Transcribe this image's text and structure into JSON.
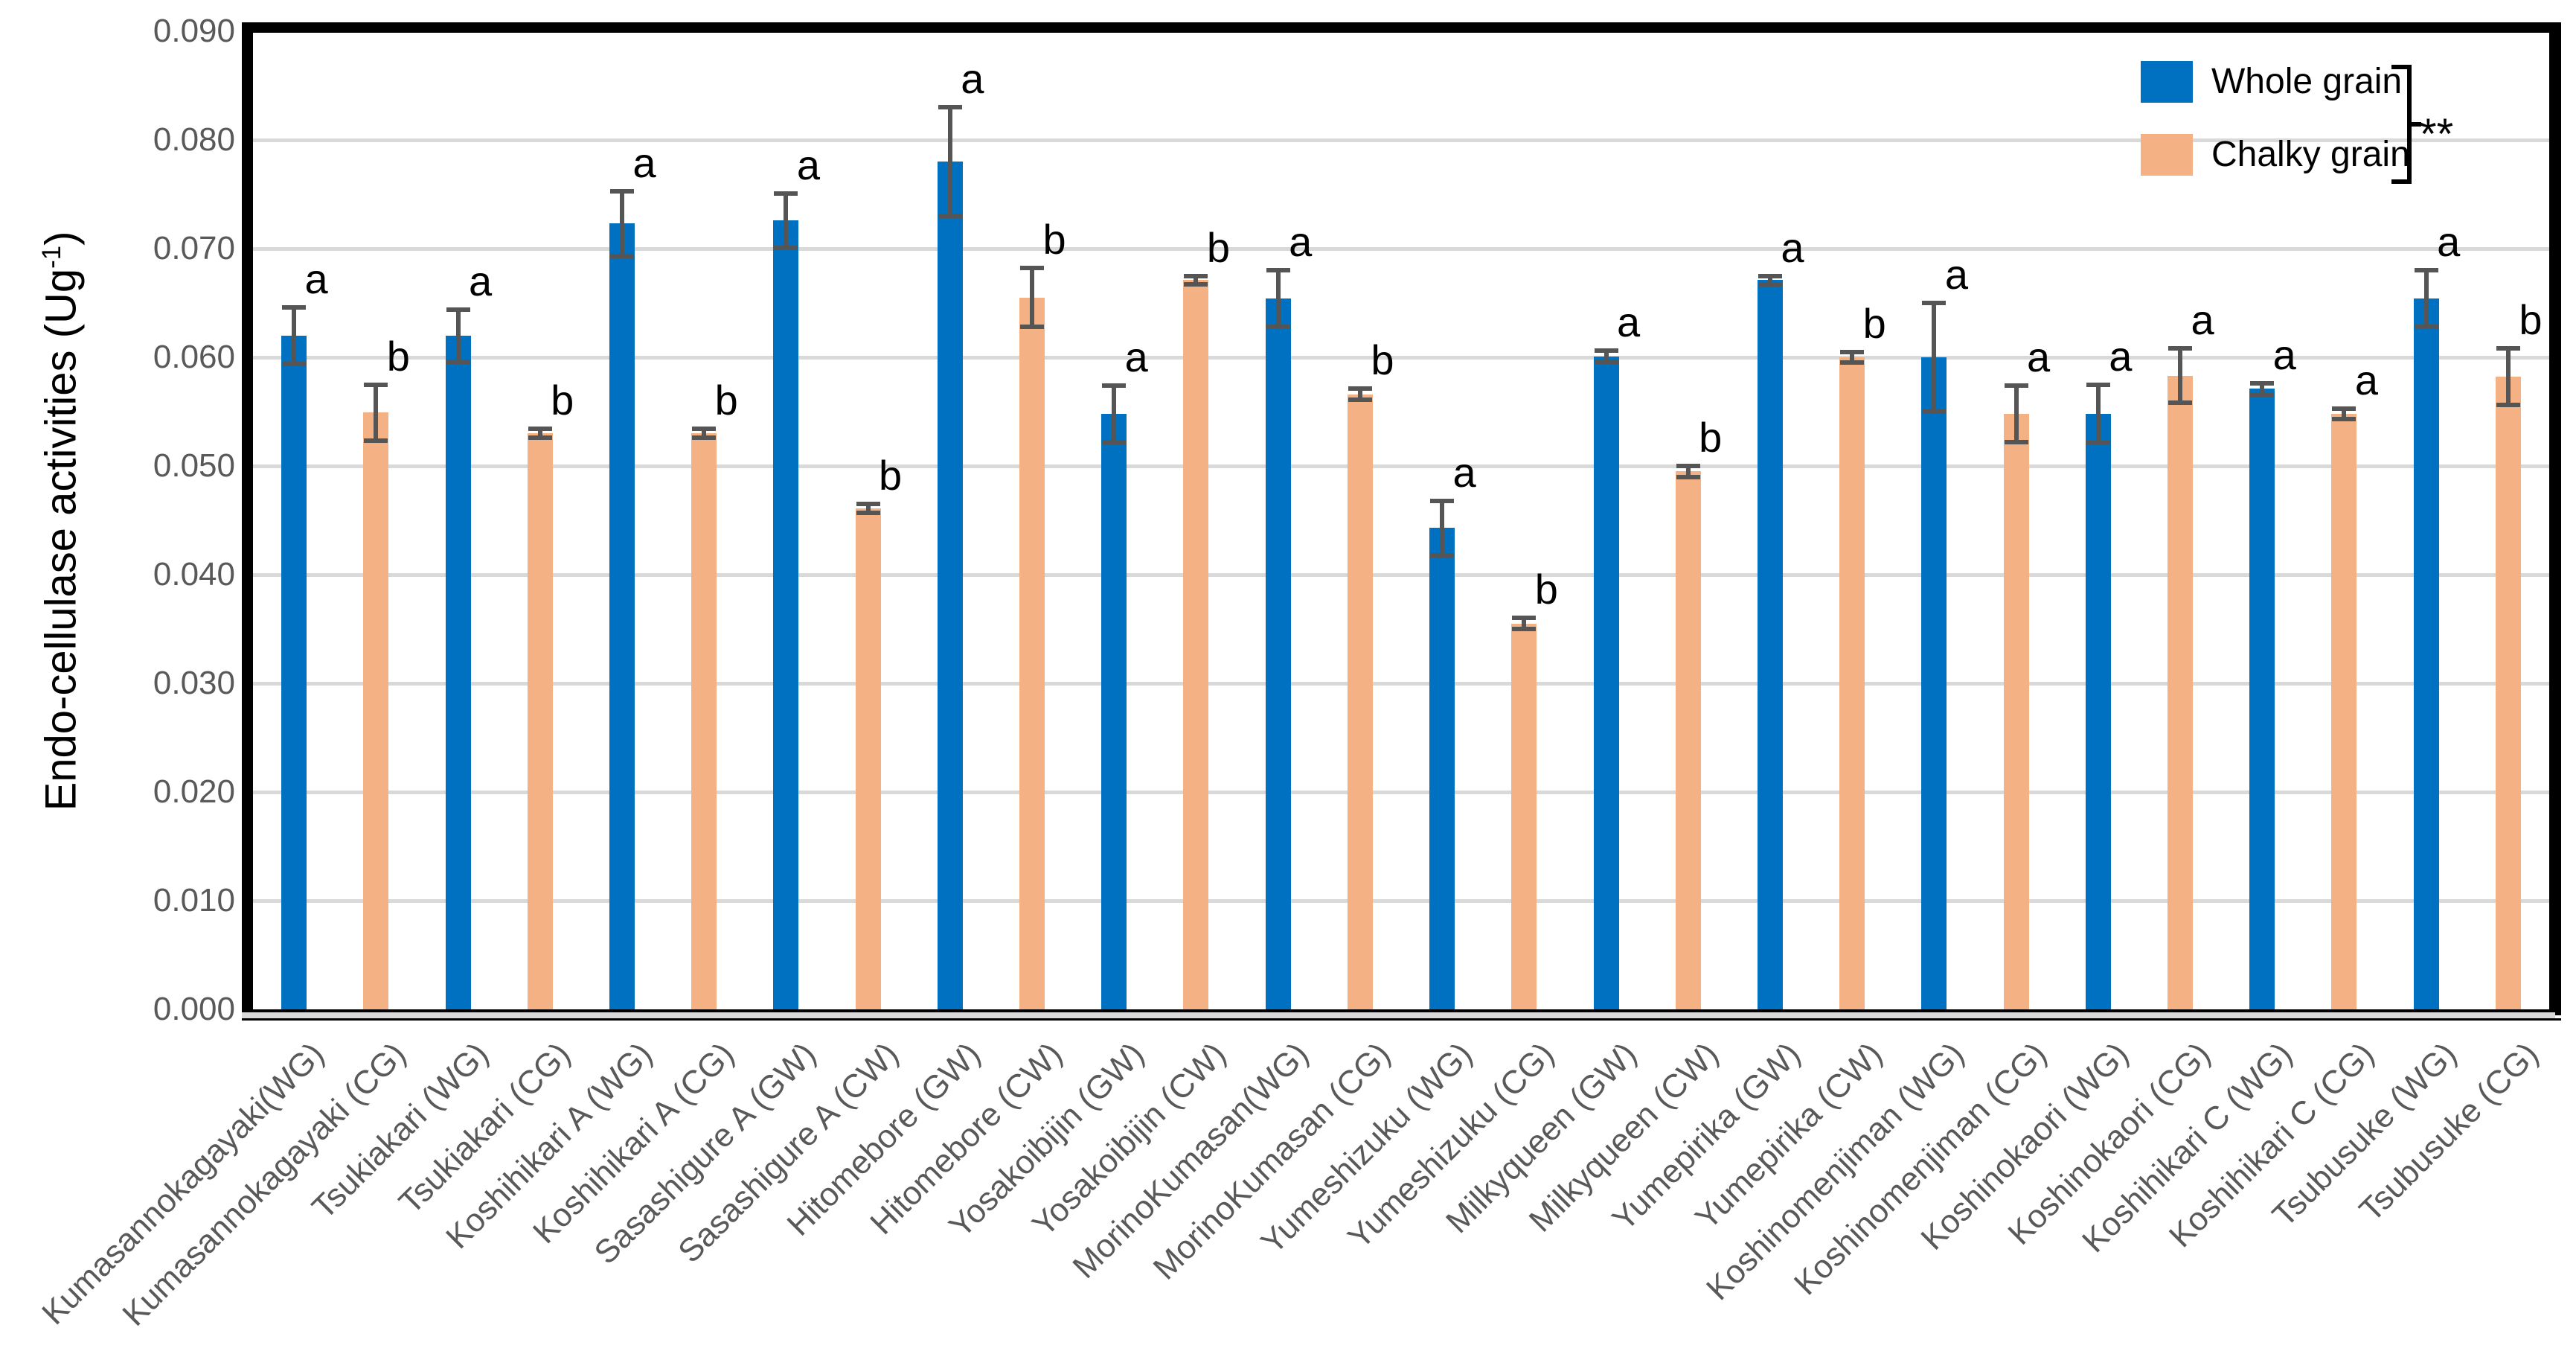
{
  "colors": {
    "whole_grain": "#0070C0",
    "chalky_grain": "#F4B183",
    "gridline": "#D9D9D9",
    "error_bar": "#555555",
    "tick_text": "#595959",
    "axis_line": "#000000"
  },
  "y_axis": {
    "title_text": "Endo-cellulase activities (Ug",
    "title_sup": "-1",
    "title_suffix": ")",
    "ticks": [
      "0.000",
      "0.010",
      "0.020",
      "0.030",
      "0.040",
      "0.050",
      "0.060",
      "0.070",
      "0.080",
      "0.090"
    ]
  },
  "legend": {
    "items": [
      {
        "label": "Whole grain",
        "color_key": "whole_grain"
      },
      {
        "label": "Chalky grain",
        "color_key": "chalky_grain"
      }
    ],
    "significance": "**"
  },
  "chart_data": {
    "type": "bar",
    "title": "",
    "xlabel": "",
    "ylabel": "Endo-cellulase activities (Ug-1)",
    "ylim": [
      0,
      0.09
    ],
    "ytick_step": 0.01,
    "grid": true,
    "legend_position": "top-right",
    "categories": [
      "Kumasannokagayaki(WG)",
      "Kumasannokagayaki (CG)",
      "Tsukiakari (WG)",
      "Tsukiakari (CG)",
      "Koshihikari A (WG)",
      "Koshihikari A (CG)",
      "Sasashigure A (GW)",
      "Sasashigure A (CW)",
      "Hitomebore (GW)",
      "Hitomebore (CW)",
      "Yosakoibijin (GW)",
      "Yosakoibijin (CW)",
      "MorinoKumasan(WG)",
      "MorinoKumasan (CG)",
      "Yumeshizuku (WG)",
      "Yumeshizuku (CG)",
      "Milkyqueen (GW)",
      "Milkyqueen (CW)",
      "Yumepirika (GW)",
      "Yumepirika (CW)",
      "Koshinomenjiman (WG)",
      "Koshinomenjiman (CG)",
      "Koshinokaori (WG)",
      "Koshinokaori (CG)",
      "Koshihikari C (WG)",
      "Koshihikari C (CG)",
      "Tsubusuke (WG)",
      "Tsubusuke (CG)"
    ],
    "bars": [
      {
        "label": "Kumasannokagayaki(WG)",
        "group": "whole",
        "value": 0.062,
        "error": 0.0026,
        "letter": "a"
      },
      {
        "label": "Kumasannokagayaki (CG)",
        "group": "chalky",
        "value": 0.0549,
        "error": 0.0026,
        "letter": "b"
      },
      {
        "label": "Tsukiakari (WG)",
        "group": "whole",
        "value": 0.062,
        "error": 0.0024,
        "letter": "a"
      },
      {
        "label": "Tsukiakari (CG)",
        "group": "chalky",
        "value": 0.053,
        "error": 0.0004,
        "letter": "b"
      },
      {
        "label": "Koshihikari A (WG)",
        "group": "whole",
        "value": 0.0723,
        "error": 0.003,
        "letter": "a"
      },
      {
        "label": "Koshihikari A (CG)",
        "group": "chalky",
        "value": 0.053,
        "error": 0.0004,
        "letter": "b"
      },
      {
        "label": "Sasashigure A (GW)",
        "group": "whole",
        "value": 0.0726,
        "error": 0.0025,
        "letter": "a"
      },
      {
        "label": "Sasashigure A (CW)",
        "group": "chalky",
        "value": 0.0461,
        "error": 0.0004,
        "letter": "b"
      },
      {
        "label": "Hitomebore (GW)",
        "group": "whole",
        "value": 0.078,
        "error": 0.005,
        "letter": "a"
      },
      {
        "label": "Hitomebore (CW)",
        "group": "chalky",
        "value": 0.0655,
        "error": 0.0027,
        "letter": "b"
      },
      {
        "label": "Yosakoibijin (GW)",
        "group": "whole",
        "value": 0.0548,
        "error": 0.0026,
        "letter": "a"
      },
      {
        "label": "Yosakoibijin (CW)",
        "group": "chalky",
        "value": 0.0671,
        "error": 0.0004,
        "letter": "b"
      },
      {
        "label": "MorinoKumasan(WG)",
        "group": "whole",
        "value": 0.0654,
        "error": 0.0026,
        "letter": "a"
      },
      {
        "label": "MorinoKumasan (CG)",
        "group": "chalky",
        "value": 0.0566,
        "error": 0.0005,
        "letter": "b"
      },
      {
        "label": "Yumeshizuku (WG)",
        "group": "whole",
        "value": 0.0443,
        "error": 0.0025,
        "letter": "a"
      },
      {
        "label": "Yumeshizuku (CG)",
        "group": "chalky",
        "value": 0.0355,
        "error": 0.0005,
        "letter": "b"
      },
      {
        "label": "Milkyqueen (GW)",
        "group": "whole",
        "value": 0.0601,
        "error": 0.0005,
        "letter": "a"
      },
      {
        "label": "Milkyqueen (CW)",
        "group": "chalky",
        "value": 0.0495,
        "error": 0.0005,
        "letter": "b"
      },
      {
        "label": "Yumepirika (GW)",
        "group": "whole",
        "value": 0.0671,
        "error": 0.0004,
        "letter": "a"
      },
      {
        "label": "Yumepirika (CW)",
        "group": "chalky",
        "value": 0.06,
        "error": 0.0005,
        "letter": "b"
      },
      {
        "label": "Koshinomenjiman (WG)",
        "group": "whole",
        "value": 0.06,
        "error": 0.005,
        "letter": "a"
      },
      {
        "label": "Koshinomenjiman (CG)",
        "group": "chalky",
        "value": 0.0548,
        "error": 0.0026,
        "letter": "a"
      },
      {
        "label": "Koshinokaori (WG)",
        "group": "whole",
        "value": 0.0548,
        "error": 0.0027,
        "letter": "a"
      },
      {
        "label": "Koshinokaori (CG)",
        "group": "chalky",
        "value": 0.0583,
        "error": 0.0025,
        "letter": "a"
      },
      {
        "label": "Koshihikari C (WG)",
        "group": "whole",
        "value": 0.0571,
        "error": 0.0005,
        "letter": "a"
      },
      {
        "label": "Koshihikari C (CG)",
        "group": "chalky",
        "value": 0.0548,
        "error": 0.0005,
        "letter": "a"
      },
      {
        "label": "Tsubusuke (WG)",
        "group": "whole",
        "value": 0.0654,
        "error": 0.0026,
        "letter": "a"
      },
      {
        "label": "Tsubusuke (CG)",
        "group": "chalky",
        "value": 0.0582,
        "error": 0.0026,
        "letter": "b"
      }
    ]
  }
}
